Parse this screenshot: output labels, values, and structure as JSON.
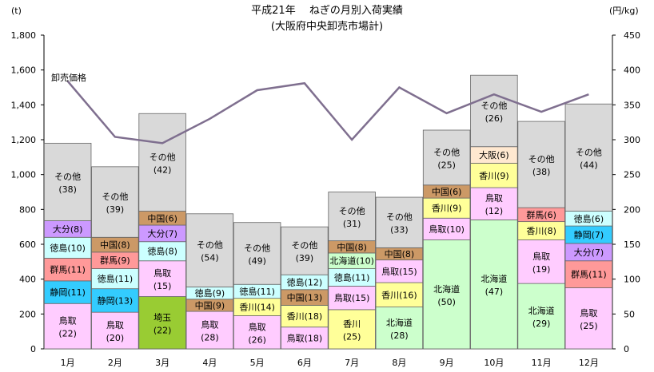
{
  "chart_data": {
    "type": "bar",
    "subtype": "stacked-bar-with-line",
    "title": "平成21年　 ねぎの月別入荷実績",
    "subtitle": "(大阪府中央卸売市場計)",
    "y_left_unit": "(t)",
    "y_right_unit": "(円/kg)",
    "y_left_range": [
      0,
      1800
    ],
    "y_left_ticks": [
      "0",
      "200",
      "400",
      "600",
      "800",
      "1,000",
      "1,200",
      "1,400",
      "1,600",
      "1,800"
    ],
    "y_right_range": [
      0,
      450
    ],
    "y_right_ticks": [
      "0",
      "50",
      "100",
      "150",
      "200",
      "250",
      "300",
      "350",
      "400",
      "450"
    ],
    "grid": false,
    "categories": [
      "1月",
      "2月",
      "3月",
      "4月",
      "5月",
      "6月",
      "7月",
      "8月",
      "9月",
      "10月",
      "11月",
      "12月"
    ],
    "origin_colors": {
      "鳥取": "#FFCCFF",
      "静岡": "#33CCFF",
      "群馬": "#FF9999",
      "徳島": "#CCFFFF",
      "大分": "#CC99FF",
      "中国": "#CC9966",
      "その他": "#D9D9D9",
      "埼玉": "#99CC33",
      "香川": "#FFFF99",
      "北海道": "#CCFFCC",
      "大阪": "#FFE8D0"
    },
    "bars": [
      {
        "month": "1月",
        "segments": [
          {
            "name": "鳥取",
            "label": "(22)",
            "value": 260
          },
          {
            "name": "静岡",
            "label": "(11)",
            "value": 130
          },
          {
            "name": "群馬",
            "label": "(11)",
            "value": 130
          },
          {
            "name": "徳島",
            "label": "(10)",
            "value": 120
          },
          {
            "name": "大分",
            "label": "(8)",
            "value": 95
          },
          {
            "name": "その他",
            "label": "(38)",
            "value": 445
          }
        ]
      },
      {
        "month": "2月",
        "segments": [
          {
            "name": "鳥取",
            "label": "(20)",
            "value": 210
          },
          {
            "name": "静岡",
            "label": "(13)",
            "value": 135
          },
          {
            "name": "徳島",
            "label": "(11)",
            "value": 115
          },
          {
            "name": "群馬",
            "label": "(9)",
            "value": 95
          },
          {
            "name": "中国",
            "label": "(8)",
            "value": 85
          },
          {
            "name": "その他",
            "label": "(39)",
            "value": 405
          }
        ]
      },
      {
        "month": "3月",
        "segments": [
          {
            "name": "埼玉",
            "label": "(22)",
            "value": 300
          },
          {
            "name": "鳥取",
            "label": "(15)",
            "value": 205
          },
          {
            "name": "徳島",
            "label": "(8)",
            "value": 110
          },
          {
            "name": "大分",
            "label": "(7)",
            "value": 95
          },
          {
            "name": "中国",
            "label": "(6)",
            "value": 80
          },
          {
            "name": "その他",
            "label": "(42)",
            "value": 560
          }
        ]
      },
      {
        "month": "4月",
        "segments": [
          {
            "name": "鳥取",
            "label": "(28)",
            "value": 215
          },
          {
            "name": "中国",
            "label": "(9)",
            "value": 70
          },
          {
            "name": "徳島",
            "label": "(9)",
            "value": 70
          },
          {
            "name": "その他",
            "label": "(54)",
            "value": 420
          }
        ]
      },
      {
        "month": "5月",
        "segments": [
          {
            "name": "鳥取",
            "label": "(26)",
            "value": 190
          },
          {
            "name": "香川",
            "label": "(14)",
            "value": 100
          },
          {
            "name": "徳島",
            "label": "(11)",
            "value": 80
          },
          {
            "name": "その他",
            "label": "(49)",
            "value": 355
          }
        ]
      },
      {
        "month": "6月",
        "segments": [
          {
            "name": "鳥取",
            "label": "(18)",
            "value": 125
          },
          {
            "name": "香川",
            "label": "(18)",
            "value": 125
          },
          {
            "name": "中国",
            "label": "(13)",
            "value": 90
          },
          {
            "name": "徳島",
            "label": "(12)",
            "value": 85
          },
          {
            "name": "その他",
            "label": "(39)",
            "value": 275
          }
        ]
      },
      {
        "month": "7月",
        "segments": [
          {
            "name": "香川",
            "label": "(25)",
            "value": 225
          },
          {
            "name": "鳥取",
            "label": "(15)",
            "value": 135
          },
          {
            "name": "徳島",
            "label": "(11)",
            "value": 100
          },
          {
            "name": "北海道",
            "label": "(10)",
            "value": 90
          },
          {
            "name": "中国",
            "label": "(8)",
            "value": 70
          },
          {
            "name": "その他",
            "label": "(31)",
            "value": 280
          }
        ]
      },
      {
        "month": "8月",
        "segments": [
          {
            "name": "北海道",
            "label": "(28)",
            "value": 240
          },
          {
            "name": "香川",
            "label": "(16)",
            "value": 140
          },
          {
            "name": "鳥取",
            "label": "(15)",
            "value": 130
          },
          {
            "name": "中国",
            "label": "(8)",
            "value": 70
          },
          {
            "name": "その他",
            "label": "(33)",
            "value": 290
          }
        ]
      },
      {
        "month": "9月",
        "segments": [
          {
            "name": "北海道",
            "label": "(50)",
            "value": 625
          },
          {
            "name": "鳥取",
            "label": "(10)",
            "value": 125
          },
          {
            "name": "香川",
            "label": "(9)",
            "value": 115
          },
          {
            "name": "中国",
            "label": "(6)",
            "value": 75
          },
          {
            "name": "その他",
            "label": "(25)",
            "value": 315
          }
        ]
      },
      {
        "month": "10月",
        "segments": [
          {
            "name": "北海道",
            "label": "(47)",
            "value": 740
          },
          {
            "name": "鳥取",
            "label": "(12)",
            "value": 185
          },
          {
            "name": "香川",
            "label": "(9)",
            "value": 140
          },
          {
            "name": "大阪",
            "label": "(6)",
            "value": 95
          },
          {
            "name": "その他",
            "label": "(26)",
            "value": 410
          }
        ]
      },
      {
        "month": "11月",
        "segments": [
          {
            "name": "北海道",
            "label": "(29)",
            "value": 375
          },
          {
            "name": "鳥取",
            "label": "(19)",
            "value": 250
          },
          {
            "name": "香川",
            "label": "(8)",
            "value": 105
          },
          {
            "name": "群馬",
            "label": "(6)",
            "value": 80
          },
          {
            "name": "その他",
            "label": "(38)",
            "value": 495
          }
        ]
      },
      {
        "month": "12月",
        "segments": [
          {
            "name": "鳥取",
            "label": "(25)",
            "value": 350
          },
          {
            "name": "群馬",
            "label": "(11)",
            "value": 155
          },
          {
            "name": "大分",
            "label": "(7)",
            "value": 100
          },
          {
            "name": "静岡",
            "label": "(7)",
            "value": 100
          },
          {
            "name": "徳島",
            "label": "(6)",
            "value": 85
          },
          {
            "name": "その他",
            "label": "(44)",
            "value": 615
          }
        ]
      }
    ],
    "line_series": {
      "name": "卸売価格",
      "axis": "right",
      "color": "#7F6F8F",
      "values": [
        384,
        304,
        295,
        330,
        371,
        381,
        300,
        375,
        338,
        365,
        340,
        365
      ]
    }
  }
}
